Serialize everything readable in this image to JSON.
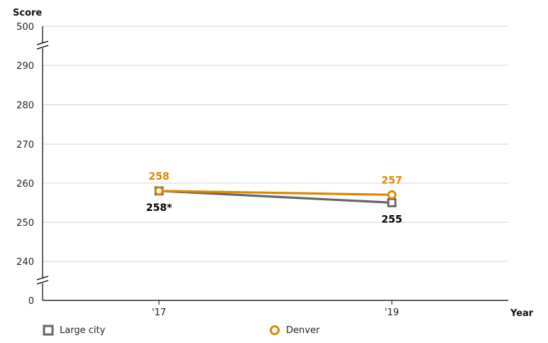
{
  "chart_data": {
    "type": "line",
    "ylabel": "Score",
    "xlabel": "Year",
    "categories": [
      "'17",
      "'19"
    ],
    "y_ticks": [
      "500",
      "290",
      "280",
      "270",
      "260",
      "250",
      "240",
      "0"
    ],
    "y_axis_breaks": true,
    "grid": true,
    "legend_position": "bottom",
    "series": [
      {
        "name": "Large city",
        "values": [
          258,
          255
        ],
        "labels": [
          "258*",
          "255"
        ],
        "color": "#666666",
        "marker": "square"
      },
      {
        "name": "Denver",
        "values": [
          258,
          257
        ],
        "labels": [
          "258",
          "257"
        ],
        "color": "#dd8700",
        "marker": "circle"
      }
    ]
  },
  "legend": {
    "items": [
      {
        "label": "Large city",
        "color": "#666666",
        "marker": "square"
      },
      {
        "label": "Denver",
        "color": "#dd8700",
        "marker": "circle"
      }
    ]
  }
}
